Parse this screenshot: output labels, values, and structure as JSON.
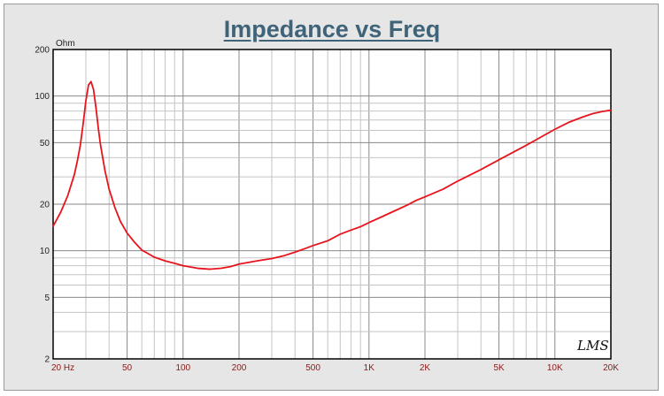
{
  "chart_data": {
    "type": "line",
    "title": "Impedance vs Freq",
    "yunit": "Ohm",
    "xscale": "log",
    "yscale": "log",
    "xlim": [
      20,
      20000
    ],
    "ylim": [
      2,
      200
    ],
    "grid": true,
    "x_tick_labels": [
      {
        "value": 20,
        "label": "20  Hz"
      },
      {
        "value": 50,
        "label": "50"
      },
      {
        "value": 100,
        "label": "100"
      },
      {
        "value": 200,
        "label": "200"
      },
      {
        "value": 500,
        "label": "500"
      },
      {
        "value": 1000,
        "label": "1K"
      },
      {
        "value": 2000,
        "label": "2K"
      },
      {
        "value": 5000,
        "label": "5K"
      },
      {
        "value": 10000,
        "label": "10K"
      },
      {
        "value": 20000,
        "label": "20K"
      }
    ],
    "y_tick_labels": [
      {
        "value": 200,
        "label": "200"
      },
      {
        "value": 100,
        "label": "100"
      },
      {
        "value": 50,
        "label": "50"
      },
      {
        "value": 20,
        "label": "20"
      },
      {
        "value": 10,
        "label": "10"
      },
      {
        "value": 5,
        "label": "5"
      },
      {
        "value": 2,
        "label": "2"
      }
    ],
    "series": [
      {
        "color": "#e8141c",
        "x": [
          20,
          22,
          24,
          26,
          27,
          28,
          29,
          30,
          31,
          32,
          33,
          34,
          35,
          36,
          38,
          40,
          43,
          46,
          50,
          55,
          60,
          70,
          80,
          90,
          100,
          120,
          140,
          160,
          180,
          200,
          250,
          300,
          350,
          400,
          450,
          500,
          600,
          700,
          800,
          900,
          1000,
          1200,
          1400,
          1600,
          1800,
          2000,
          2500,
          3000,
          4000,
          5000,
          6000,
          7000,
          8000,
          10000,
          12000,
          14000,
          16000,
          18000,
          20000
        ],
        "y": [
          14.4,
          17.8,
          22.8,
          31,
          38,
          48,
          66,
          93,
          118,
          124,
          110,
          84,
          62,
          48,
          33,
          25,
          19,
          15.5,
          13,
          11.3,
          10.1,
          9.1,
          8.6,
          8.3,
          8.0,
          7.7,
          7.6,
          7.7,
          7.9,
          8.2,
          8.6,
          8.9,
          9.3,
          9.8,
          10.3,
          10.8,
          11.6,
          12.8,
          13.6,
          14.3,
          15.2,
          16.8,
          18.3,
          19.7,
          21.2,
          22.3,
          25.0,
          28.2,
          33.5,
          38.7,
          43.5,
          48.0,
          52.5,
          61.0,
          68.0,
          73.0,
          77.0,
          79.5,
          81.0
        ]
      }
    ],
    "watermark": "LMS"
  }
}
